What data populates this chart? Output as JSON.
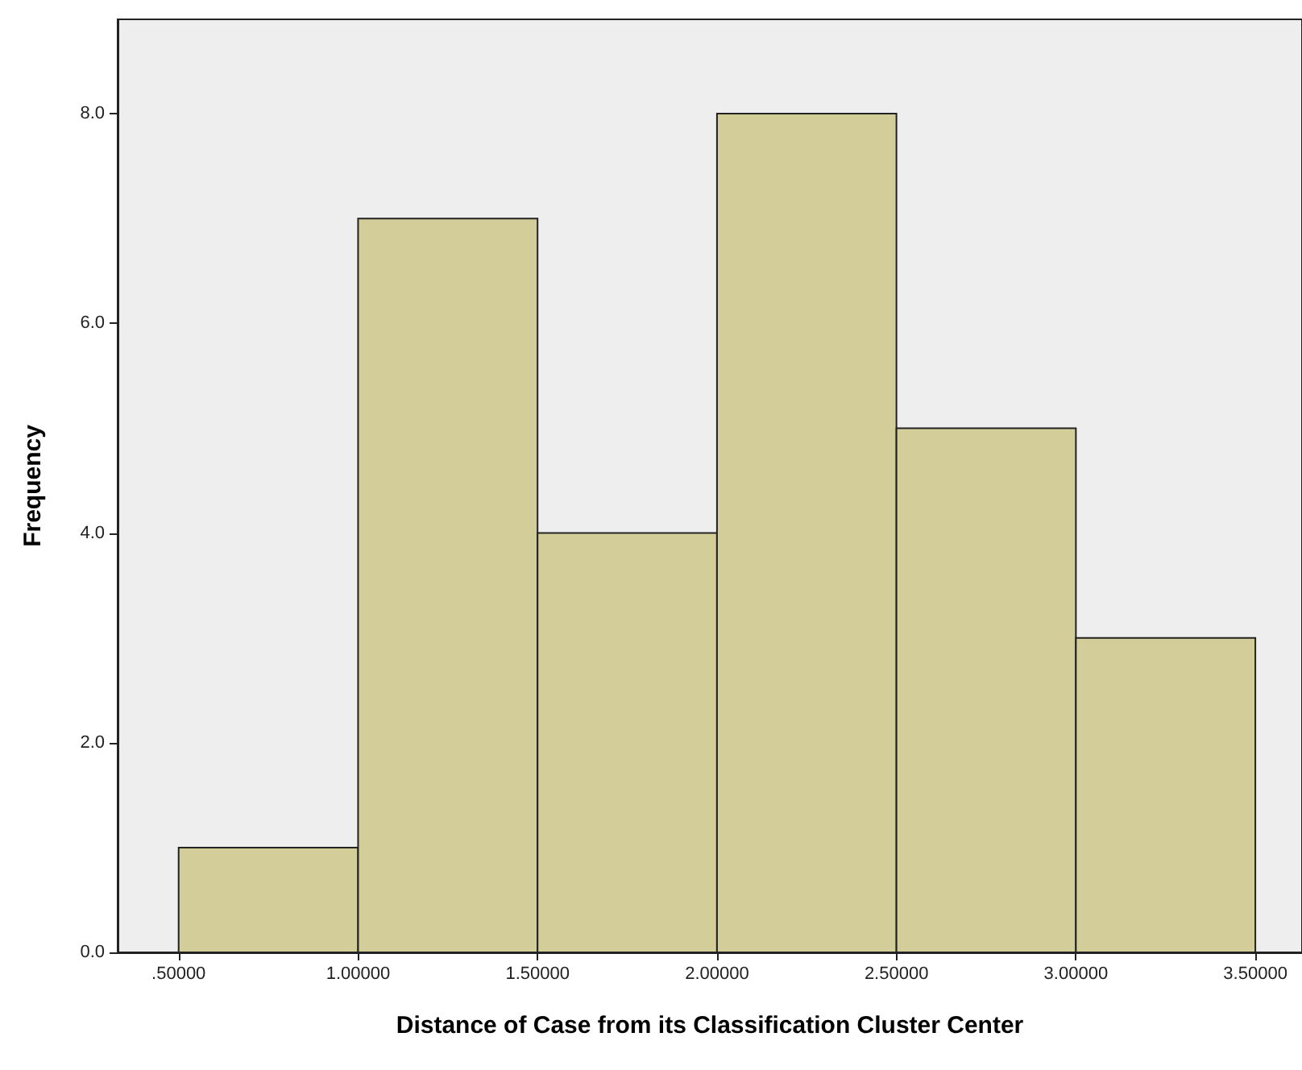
{
  "chart_data": {
    "type": "histogram",
    "xlabel": "Distance of Case from its Classification Cluster Center",
    "ylabel": "Frequency",
    "bins": [
      0.5,
      1.0,
      1.5,
      2.0,
      2.5,
      3.0,
      3.5
    ],
    "values": [
      1,
      7,
      4,
      8,
      5,
      3
    ],
    "color": "#d3ce99",
    "xlim": [
      0.33,
      3.63
    ],
    "ylim": [
      0,
      8.9
    ],
    "xticks": [
      {
        "value": 0.5,
        "label": ".50000"
      },
      {
        "value": 1.0,
        "label": "1.00000"
      },
      {
        "value": 1.5,
        "label": "1.50000"
      },
      {
        "value": 2.0,
        "label": "2.00000"
      },
      {
        "value": 2.5,
        "label": "2.50000"
      },
      {
        "value": 3.0,
        "label": "3.00000"
      },
      {
        "value": 3.5,
        "label": "3.50000"
      }
    ],
    "yticks": [
      {
        "value": 0,
        "label": "0.0"
      },
      {
        "value": 2,
        "label": "2.0"
      },
      {
        "value": 4,
        "label": "4.0"
      },
      {
        "value": 6,
        "label": "6.0"
      },
      {
        "value": 8,
        "label": "8.0"
      }
    ],
    "grid": false
  }
}
